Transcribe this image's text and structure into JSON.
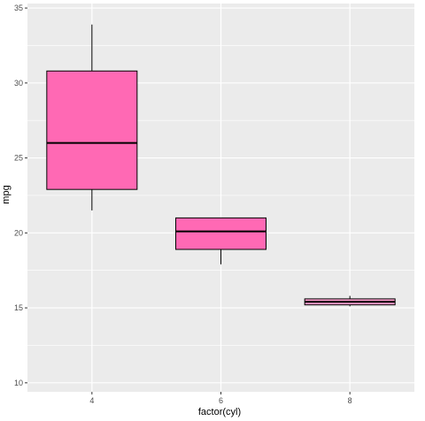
{
  "chart_data": {
    "type": "boxplot",
    "title": "",
    "xlabel": "factor(cyl)",
    "ylabel": "mpg",
    "ylim": [
      9.4,
      35.3
    ],
    "yticks": [
      10,
      15,
      20,
      25,
      30,
      35
    ],
    "categories": [
      "4",
      "6",
      "8"
    ],
    "boxes": [
      {
        "category": "4",
        "whisker_low": 21.5,
        "q1": 22.9,
        "median": 26.0,
        "q3": 30.8,
        "whisker_high": 33.9,
        "fill": "#ff69b4"
      },
      {
        "category": "6",
        "whisker_low": 17.9,
        "q1": 18.9,
        "median": 20.1,
        "q3": 21.0,
        "whisker_high": 21.0,
        "fill": "#ff69b4"
      },
      {
        "category": "8",
        "whisker_low": 15.1,
        "q1": 15.2,
        "median": 15.4,
        "q3": 15.6,
        "whisker_high": 15.8,
        "fill": "#ff9fcf"
      }
    ],
    "grid": true,
    "legend": "none"
  },
  "colors": {
    "panel_background": "#ebebeb",
    "grid_major": "#ffffff",
    "box_outline": "#000000"
  }
}
